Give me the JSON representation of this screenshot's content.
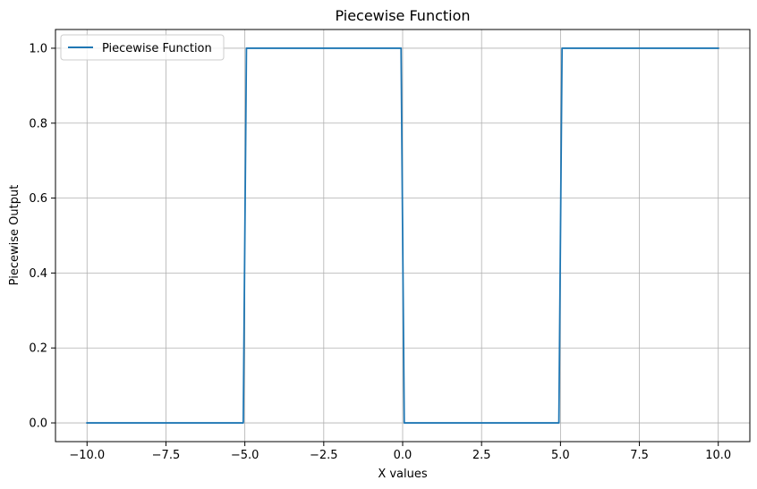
{
  "chart_data": {
    "type": "line",
    "title": "Piecewise Function",
    "xlabel": "X values",
    "ylabel": "Piecewise Output",
    "xlim": [
      -11,
      11
    ],
    "ylim": [
      -0.05,
      1.05
    ],
    "x_ticks": [
      -10.0,
      -7.5,
      -5.0,
      -2.5,
      0.0,
      2.5,
      5.0,
      7.5,
      10.0
    ],
    "x_tick_labels": [
      "−10.0",
      "−7.5",
      "−5.0",
      "−2.5",
      "0.0",
      "2.5",
      "5.0",
      "7.5",
      "10.0"
    ],
    "y_ticks": [
      0.0,
      0.2,
      0.4,
      0.6,
      0.8,
      1.0
    ],
    "y_tick_labels": [
      "0.0",
      "0.2",
      "0.4",
      "0.6",
      "0.8",
      "1.0"
    ],
    "grid": true,
    "legend_position": "upper-left",
    "series": [
      {
        "name": "Piecewise Function",
        "color": "#1f77b4",
        "points": [
          [
            -10,
            0
          ],
          [
            -5.05,
            0
          ],
          [
            -4.95,
            1
          ],
          [
            -0.05,
            1
          ],
          [
            0.05,
            0
          ],
          [
            4.95,
            0
          ],
          [
            5.05,
            1
          ],
          [
            10,
            1
          ]
        ]
      }
    ]
  }
}
